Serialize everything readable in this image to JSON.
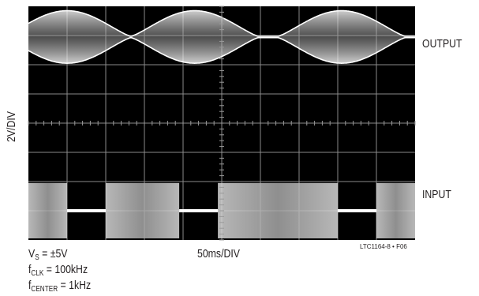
{
  "chart_data": {
    "type": "line",
    "title": "",
    "ylabel": "2V/DIV",
    "xlabel": "50ms/DIV",
    "figure_id": "LTC1164-8 • F06",
    "grid": true,
    "grid_divisions": {
      "x": 10,
      "y": 8
    },
    "traces": [
      {
        "name": "OUTPUT",
        "description_values": {
          "burst_centers_div": [
            1.0,
            4.3,
            8.1
          ],
          "peak_amplitude_div": 1.8
        }
      },
      {
        "name": "INPUT",
        "segments_on": [
          [
            0,
            1.0
          ],
          [
            2.0,
            3.9
          ],
          [
            4.9,
            8.0
          ],
          [
            9.0,
            10.0
          ]
        ]
      }
    ],
    "conditions": {
      "line1": {
        "sym": "V",
        "sub": "S",
        "rest": " = ±5V"
      },
      "line2": {
        "sym": "f",
        "sub": "CLK",
        "rest": " = 100kHz"
      },
      "line3": {
        "sym": "f",
        "sub": "CENTER",
        "rest": " = 1kHz"
      }
    }
  }
}
